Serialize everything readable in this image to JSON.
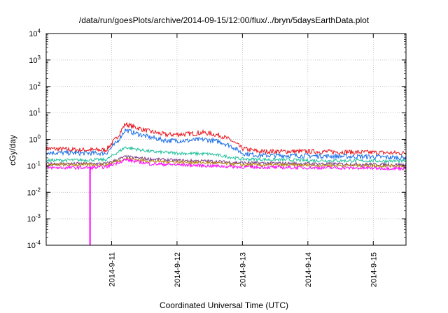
{
  "chart_data": {
    "type": "line",
    "title": "/data/run/goesPlots/archive/2014-09-15/12:00/flux/../bryn/5daysEarthData.plot",
    "xlabel": "Coordinated Universal Time (UTC)",
    "ylabel": "cGy/day",
    "yscale": "log",
    "ylim": [
      0.0001,
      10000
    ],
    "xlim": [
      "2014-09-10T00:00",
      "2014-09-15T12:00"
    ],
    "x_ticks": [
      "2014-9-11",
      "2014-9-12",
      "2014-9-13",
      "2014-9-14",
      "2014-9-15"
    ],
    "y_ticks": [
      "10^-4",
      "10^-3",
      "10^-2",
      "10^-1",
      "10^0",
      "10^1",
      "10^2",
      "10^3",
      "10^4"
    ],
    "grid": true,
    "legend": "none",
    "series": [
      {
        "color": "#e8141b",
        "x": [
          "2014-09-10T00:00",
          "2014-09-10T12:00",
          "2014-09-10T22:00",
          "2014-09-11T02:00",
          "2014-09-11T05:00",
          "2014-09-11T08:00",
          "2014-09-11T14:00",
          "2014-09-11T20:00",
          "2014-09-12T04:00",
          "2014-09-12T10:00",
          "2014-09-12T16:00",
          "2014-09-12T20:00",
          "2014-09-13T00:00",
          "2014-09-13T06:00",
          "2014-09-14T00:00",
          "2014-09-15T00:00",
          "2014-09-15T12:00"
        ],
        "y": [
          0.45,
          0.4,
          0.4,
          1.2,
          3.8,
          3.0,
          2.0,
          1.5,
          1.6,
          1.8,
          1.4,
          0.9,
          0.45,
          0.35,
          0.35,
          0.32,
          0.3
        ]
      },
      {
        "color": "#1a6ee8",
        "x": [
          "2014-09-10T00:00",
          "2014-09-10T12:00",
          "2014-09-10T22:00",
          "2014-09-11T02:00",
          "2014-09-11T05:00",
          "2014-09-11T08:00",
          "2014-09-11T14:00",
          "2014-09-11T20:00",
          "2014-09-12T04:00",
          "2014-09-12T10:00",
          "2014-09-12T16:00",
          "2014-09-12T20:00",
          "2014-09-13T00:00",
          "2014-09-13T06:00",
          "2014-09-14T00:00",
          "2014-09-15T00:00",
          "2014-09-15T12:00"
        ],
        "y": [
          0.32,
          0.3,
          0.3,
          0.8,
          2.3,
          1.8,
          1.2,
          0.9,
          0.9,
          1.0,
          0.8,
          0.55,
          0.3,
          0.25,
          0.24,
          0.22,
          0.2
        ]
      },
      {
        "color": "#1fbf9a",
        "x": [
          "2014-09-10T00:00",
          "2014-09-10T22:00",
          "2014-09-11T05:00",
          "2014-09-11T14:00",
          "2014-09-12T00:00",
          "2014-09-12T12:00",
          "2014-09-13T00:00",
          "2014-09-14T00:00",
          "2014-09-15T12:00"
        ],
        "y": [
          0.16,
          0.17,
          0.5,
          0.35,
          0.3,
          0.28,
          0.18,
          0.16,
          0.15
        ]
      },
      {
        "color": "#7a3a8a",
        "x": [
          "2014-09-10T00:00",
          "2014-09-10T22:00",
          "2014-09-11T05:00",
          "2014-09-11T14:00",
          "2014-09-12T00:00",
          "2014-09-12T12:00",
          "2014-09-13T00:00",
          "2014-09-14T00:00",
          "2014-09-15T12:00"
        ],
        "y": [
          0.12,
          0.12,
          0.22,
          0.18,
          0.16,
          0.15,
          0.13,
          0.12,
          0.11
        ]
      },
      {
        "color": "#b8860b",
        "x": [
          "2014-09-10T00:00",
          "2014-09-10T22:00",
          "2014-09-11T05:00",
          "2014-09-11T14:00",
          "2014-09-12T00:00",
          "2014-09-12T12:00",
          "2014-09-13T00:00",
          "2014-09-14T00:00",
          "2014-09-15T12:00"
        ],
        "y": [
          0.11,
          0.11,
          0.19,
          0.15,
          0.14,
          0.13,
          0.11,
          0.105,
          0.1
        ]
      },
      {
        "color": "#ff00ff",
        "x": [
          "2014-09-10T00:00",
          "2014-09-10T16:00",
          "2014-09-10T16:05",
          "2014-09-10T16:10",
          "2014-09-10T22:00",
          "2014-09-11T05:00",
          "2014-09-11T14:00",
          "2014-09-12T00:00",
          "2014-09-12T12:00",
          "2014-09-13T00:00",
          "2014-09-14T00:00",
          "2014-09-15T12:00"
        ],
        "y": [
          0.085,
          0.085,
          0.0001,
          0.085,
          0.09,
          0.17,
          0.12,
          0.11,
          0.1,
          0.09,
          0.085,
          0.08
        ]
      }
    ]
  }
}
